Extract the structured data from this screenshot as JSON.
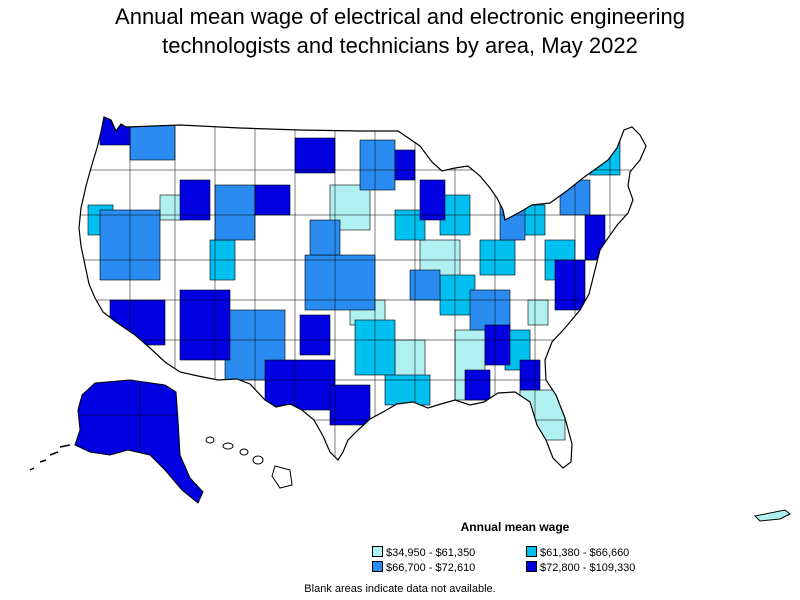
{
  "title": {
    "line1": "Annual mean wage of electrical and electronic engineering",
    "line2": "technologists and technicians by area, May 2022"
  },
  "legend": {
    "title": "Annual mean wage",
    "items": [
      {
        "label": "$34,950 - $61,350",
        "color": "#b0f0f0"
      },
      {
        "label": "$61,380 - $66,660",
        "color": "#00c0f0"
      },
      {
        "label": "$66,700 - $72,610",
        "color": "#2a8cf0"
      },
      {
        "label": "$72,800 - $109,330",
        "color": "#0000e0"
      }
    ]
  },
  "footnote": "Blank areas indicate data not available.",
  "colors": {
    "blank": "#ffffff",
    "border": "#000000"
  }
}
